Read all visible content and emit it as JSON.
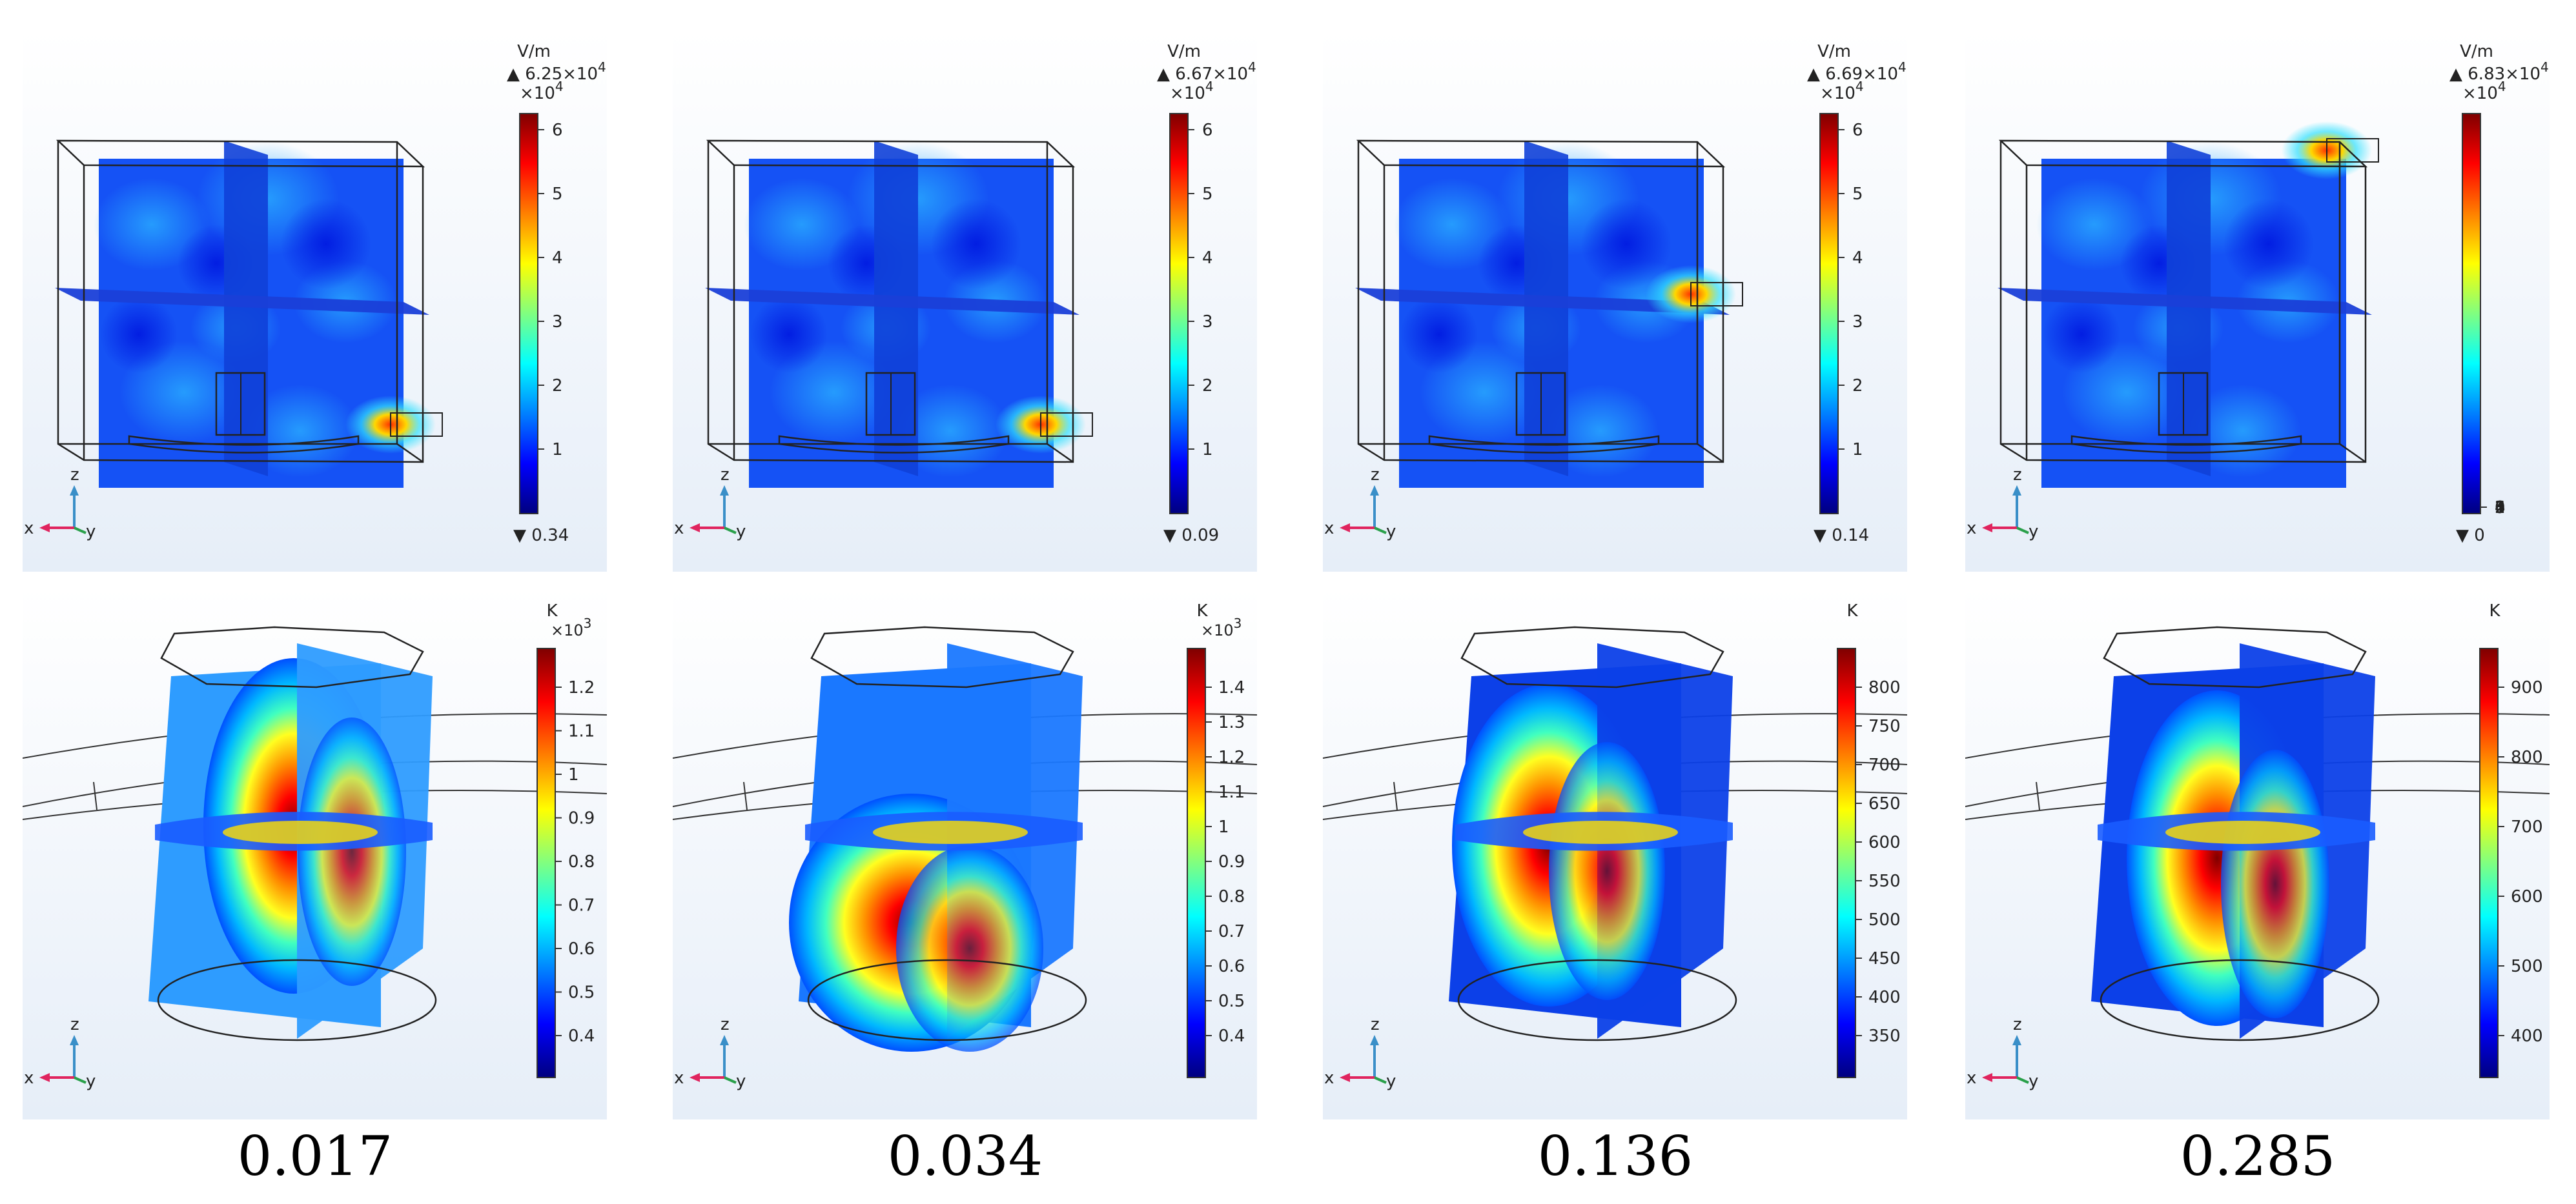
{
  "field_panels": [
    {
      "unit": "V/m",
      "max_label": "▲ 6.25×10",
      "max_exp": "4",
      "mult_base": "×10",
      "mult_exp": "4",
      "min_label": "▼ 0.34",
      "ticks": [
        "1",
        "2",
        "3",
        "4",
        "5",
        "6"
      ],
      "port": "bottom"
    },
    {
      "unit": "V/m",
      "max_label": "▲ 6.67×10",
      "max_exp": "4",
      "mult_base": "×10",
      "mult_exp": "4",
      "min_label": "▼ 0.09",
      "ticks": [
        "1",
        "2",
        "3",
        "4",
        "5",
        "6"
      ],
      "port": "bottom"
    },
    {
      "unit": "V/m",
      "max_label": "▲ 6.69×10",
      "max_exp": "4",
      "mult_base": "×10",
      "mult_exp": "4",
      "min_label": "▼ 0.14",
      "ticks": [
        "1",
        "2",
        "3",
        "4",
        "5",
        "6"
      ],
      "port": "middle"
    },
    {
      "unit": "V/m",
      "max_label": "▲ 6.83×10",
      "max_exp": "4",
      "mult_base": "×10",
      "mult_exp": "4",
      "min_label": "▼ 0",
      "ticks": [
        "0",
        "1",
        "2",
        "3",
        "4",
        "5",
        "6"
      ],
      "port": "top"
    }
  ],
  "temp_panels": [
    {
      "unit": "K",
      "mult_base": "×10",
      "mult_exp": "3",
      "ticks": [
        "0.4",
        "0.5",
        "0.6",
        "0.7",
        "0.8",
        "0.9",
        "1",
        "1.1",
        "1.2"
      ],
      "pattern": "right"
    },
    {
      "unit": "K",
      "mult_base": "×10",
      "mult_exp": "3",
      "ticks": [
        "0.4",
        "0.5",
        "0.6",
        "0.7",
        "0.8",
        "0.9",
        "1",
        "1.1",
        "1.2",
        "1.3",
        "1.4"
      ],
      "pattern": "lower"
    },
    {
      "unit": "K",
      "mult_base": "",
      "mult_exp": "",
      "ticks": [
        "350",
        "400",
        "450",
        "500",
        "550",
        "600",
        "650",
        "700",
        "750",
        "800"
      ],
      "pattern": "left"
    },
    {
      "unit": "K",
      "mult_base": "",
      "mult_exp": "",
      "ticks": [
        "400",
        "500",
        "600",
        "700",
        "800",
        "900"
      ],
      "pattern": "center"
    }
  ],
  "axes": {
    "x": "x",
    "y": "y",
    "z": "z"
  },
  "captions": [
    "0.017",
    "0.034",
    "0.136",
    "0.285"
  ],
  "colors": {
    "jet": [
      "#00007f",
      "#0000ff",
      "#0080ff",
      "#00ffff",
      "#80ff80",
      "#ffff00",
      "#ff8000",
      "#ff0000",
      "#7f0000"
    ],
    "panel_bg_top": "#ffffff",
    "panel_bg_bottom": "#e6eef8",
    "axis_x": "#e0245e",
    "axis_y": "#2aa04a",
    "axis_z": "#3a8fc8"
  }
}
